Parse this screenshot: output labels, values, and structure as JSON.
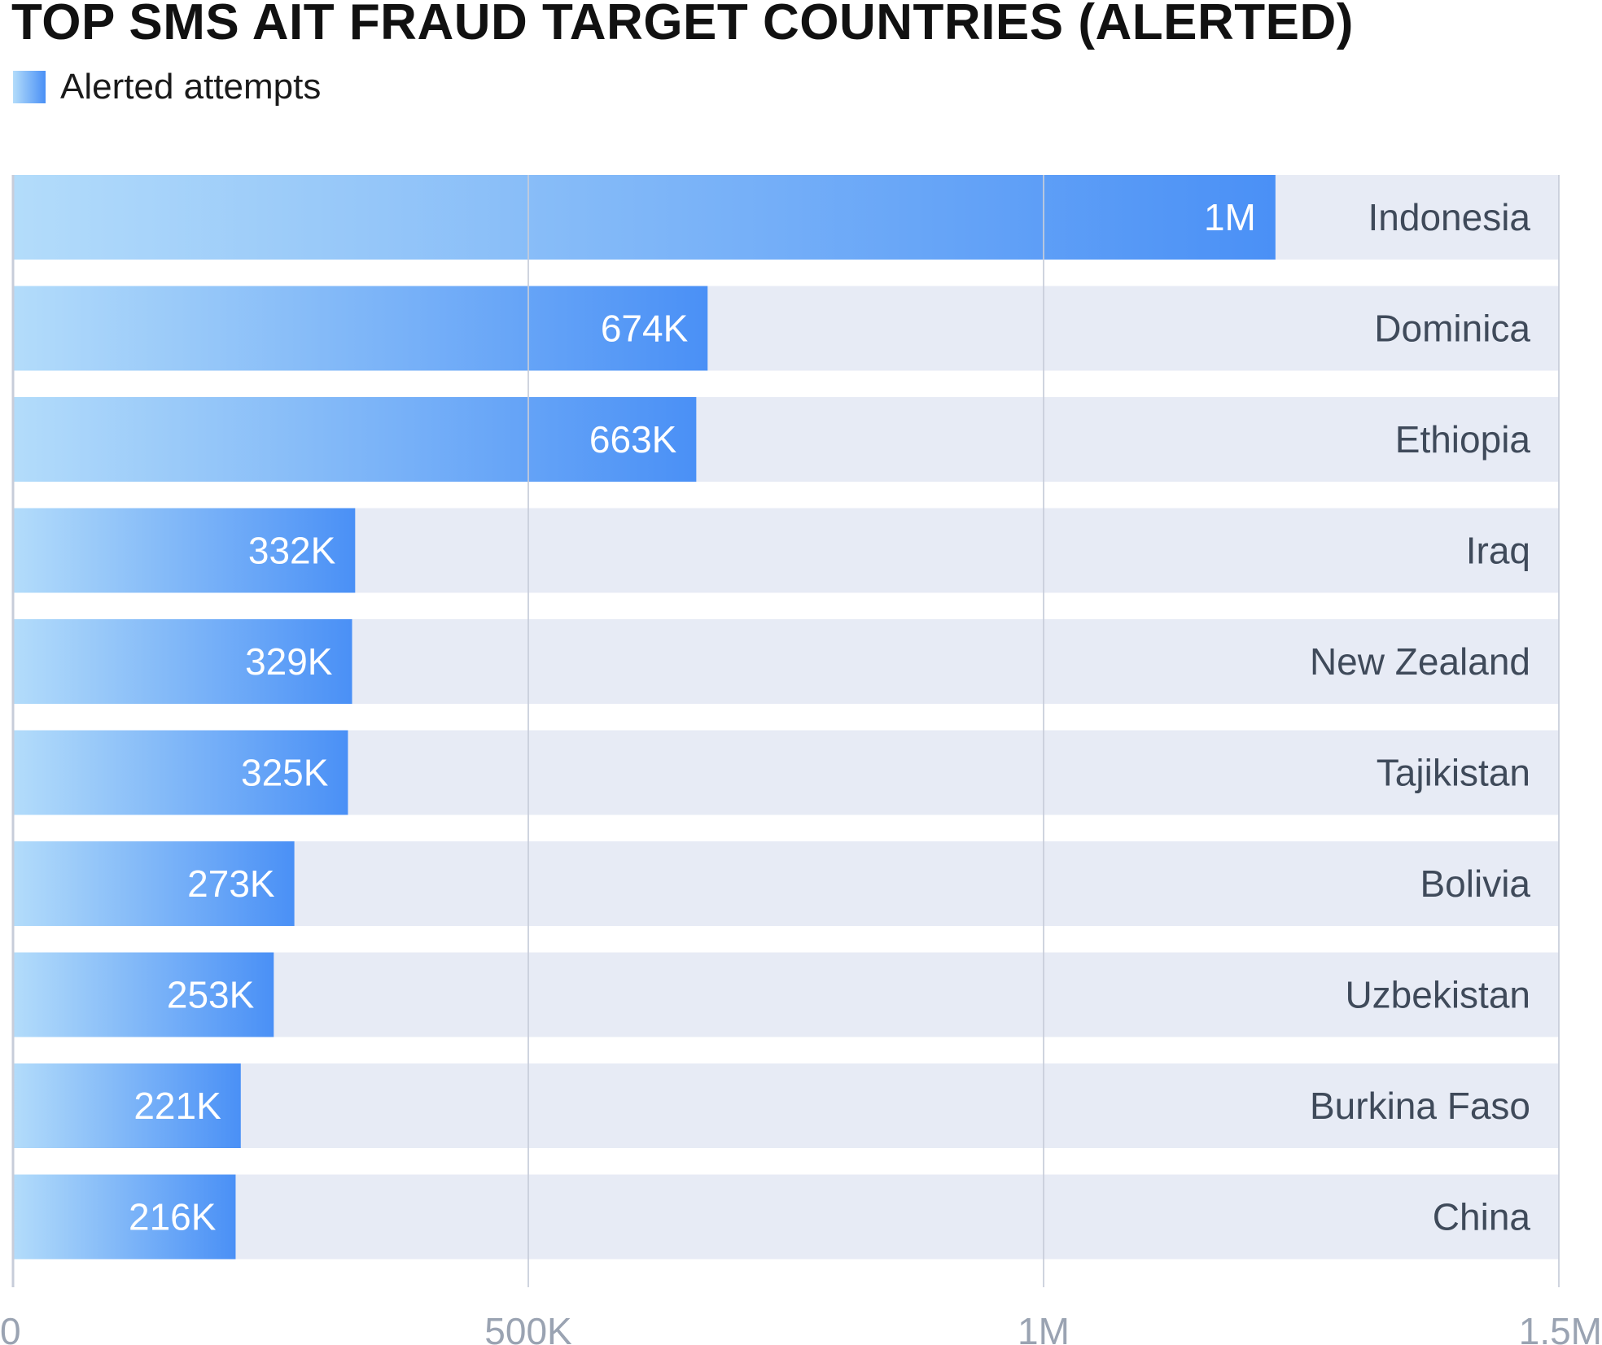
{
  "chart_data": {
    "type": "bar",
    "orientation": "horizontal",
    "title": "TOP SMS AIT FRAUD TARGET COUNTRIES (ALERTED)",
    "legend": [
      "Alerted attempts"
    ],
    "legend_position": "top-left",
    "categories": [
      "Indonesia",
      "Dominica",
      "Ethiopia",
      "Iraq",
      "New Zealand",
      "Tajikistan",
      "Bolivia",
      "Uzbekistan",
      "Burkina Faso",
      "China"
    ],
    "series": [
      {
        "name": "Alerted attempts",
        "values": [
          1225000,
          674000,
          663000,
          332000,
          329000,
          325000,
          273000,
          253000,
          221000,
          216000
        ],
        "data_labels": [
          "1M",
          "674K",
          "663K",
          "332K",
          "329K",
          "325K",
          "273K",
          "253K",
          "221K",
          "216K"
        ]
      }
    ],
    "xlim": [
      0,
      1500000
    ],
    "xticks": [
      0,
      500000,
      1000000,
      1500000
    ],
    "xtick_labels": [
      "0",
      "500K",
      "1M",
      "1.5M"
    ],
    "xlabel": "",
    "ylabel": "",
    "grid": true,
    "colors": {
      "bar_start": "#b3dcfa",
      "bar_end": "#4a90f6",
      "track": "#e7ebf5",
      "grid": "#c7cdd9",
      "category_text": "#3f4a5a",
      "bar_label_text": "#ffffff",
      "tick_text": "#9aa3b2"
    }
  }
}
